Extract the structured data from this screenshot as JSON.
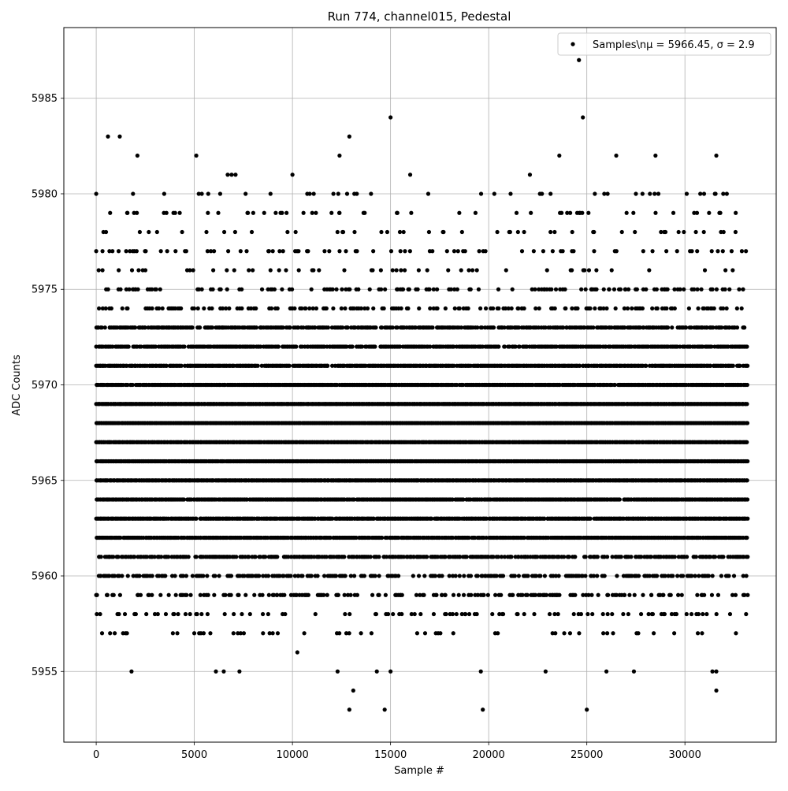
{
  "chart_data": {
    "type": "scatter",
    "title": "Run 774, channel015, Pedestal",
    "xlabel": "Sample #",
    "ylabel": "ADC Counts",
    "xlim": [
      -1650,
      34650
    ],
    "ylim": [
      5951.3,
      5988.7
    ],
    "x_ticks": [
      0,
      5000,
      10000,
      15000,
      20000,
      25000,
      30000
    ],
    "y_ticks": [
      5955,
      5960,
      5965,
      5970,
      5975,
      5980,
      5985
    ],
    "grid": true,
    "legend": {
      "placement": "top-right",
      "label": "Samples\\nμ = 5966.45, σ = 2.9"
    },
    "series": [
      {
        "name": "Samples\\nμ = 5966.45, σ = 2.9",
        "color": "#000000",
        "marker": "circle",
        "sample_count": 33200,
        "mean": 5966.45,
        "sigma": 2.9,
        "dense_band": [
          5962,
          5971
        ],
        "level_occupancy": {
          "5957": 0.08,
          "5958": 0.18,
          "5959": 0.3,
          "5960": 0.45,
          "5961": 0.65,
          "5962": 0.9,
          "5963": 0.95,
          "5964": 0.95,
          "5965": 1.0,
          "5966": 1.0,
          "5967": 1.0,
          "5968": 1.0,
          "5969": 1.0,
          "5970": 0.95,
          "5971": 0.92,
          "5972": 0.8,
          "5973": 0.7,
          "5974": 0.3,
          "5975": 0.22,
          "5976": 0.1,
          "5977": 0.14,
          "5978": 0.08,
          "5979": 0.1,
          "5980": 0.08
        },
        "outliers": [
          {
            "x": 0,
            "y": 5977
          },
          {
            "x": 30,
            "y": 5958
          },
          {
            "x": 40,
            "y": 5959
          },
          {
            "x": 600,
            "y": 5983
          },
          {
            "x": 1200,
            "y": 5983
          },
          {
            "x": 2100,
            "y": 5982
          },
          {
            "x": 5100,
            "y": 5982
          },
          {
            "x": 6700,
            "y": 5981
          },
          {
            "x": 6900,
            "y": 5981
          },
          {
            "x": 7100,
            "y": 5981
          },
          {
            "x": 10000,
            "y": 5981
          },
          {
            "x": 12400,
            "y": 5982
          },
          {
            "x": 12900,
            "y": 5983
          },
          {
            "x": 15000,
            "y": 5984
          },
          {
            "x": 16000,
            "y": 5981
          },
          {
            "x": 22100,
            "y": 5981
          },
          {
            "x": 23600,
            "y": 5982
          },
          {
            "x": 24600,
            "y": 5987
          },
          {
            "x": 24800,
            "y": 5984
          },
          {
            "x": 26500,
            "y": 5982
          },
          {
            "x": 28500,
            "y": 5982
          },
          {
            "x": 31600,
            "y": 5982
          },
          {
            "x": 1800,
            "y": 5955
          },
          {
            "x": 6100,
            "y": 5955
          },
          {
            "x": 6500,
            "y": 5955
          },
          {
            "x": 7300,
            "y": 5955
          },
          {
            "x": 10250,
            "y": 5956
          },
          {
            "x": 12300,
            "y": 5955
          },
          {
            "x": 12900,
            "y": 5953
          },
          {
            "x": 13100,
            "y": 5954
          },
          {
            "x": 14300,
            "y": 5955
          },
          {
            "x": 14700,
            "y": 5953
          },
          {
            "x": 15000,
            "y": 5955
          },
          {
            "x": 19600,
            "y": 5955
          },
          {
            "x": 19700,
            "y": 5953
          },
          {
            "x": 22900,
            "y": 5955
          },
          {
            "x": 25000,
            "y": 5953
          },
          {
            "x": 26000,
            "y": 5955
          },
          {
            "x": 27400,
            "y": 5955
          },
          {
            "x": 31400,
            "y": 5955
          },
          {
            "x": 31600,
            "y": 5954
          },
          {
            "x": 31600,
            "y": 5955
          }
        ]
      }
    ]
  }
}
